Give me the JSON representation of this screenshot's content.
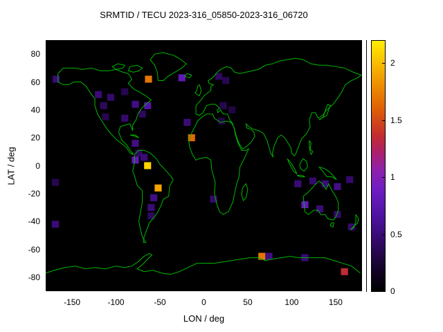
{
  "title": "SRMTID / TECU 2023-316_05850-2023-316_06720",
  "chart_data": {
    "type": "heatmap",
    "title": "SRMTID / TECU 2023-316_05850-2023-316_06720",
    "xlabel": "LON / deg",
    "ylabel": "LAT / deg",
    "xlim": [
      -180,
      180
    ],
    "ylim": [
      -90,
      90
    ],
    "xticks": [
      -150,
      -100,
      -50,
      0,
      50,
      100,
      150
    ],
    "yticks": [
      -80,
      -60,
      -40,
      -20,
      0,
      20,
      40,
      60,
      80
    ],
    "grid": false,
    "background": "#000000",
    "coastline_color": "#00b800",
    "colorbar": {
      "min": 0,
      "max": 2.2,
      "ticks": [
        0,
        0.5,
        1,
        1.5,
        2
      ],
      "position": "right"
    },
    "cell_size_deg": {
      "lon": 8,
      "lat": 5
    },
    "palette": [
      {
        "at": 0.0,
        "color": "#000000"
      },
      {
        "at": 0.09,
        "color": "#140328"
      },
      {
        "at": 0.2,
        "color": "#330968"
      },
      {
        "at": 0.3,
        "color": "#4e12a0"
      },
      {
        "at": 0.4,
        "color": "#6c1cc2"
      },
      {
        "at": 0.48,
        "color": "#8c21ae"
      },
      {
        "at": 0.55,
        "color": "#aa2070"
      },
      {
        "at": 0.62,
        "color": "#c22c30"
      },
      {
        "at": 0.72,
        "color": "#dc5c08"
      },
      {
        "at": 0.82,
        "color": "#ee8c00"
      },
      {
        "at": 0.92,
        "color": "#f9c200"
      },
      {
        "at": 1.0,
        "color": "#ffee00"
      }
    ],
    "points": [
      [
        -168,
        62,
        0.5
      ],
      [
        -63,
        62,
        1.7
      ],
      [
        -25,
        63,
        0.8
      ],
      [
        17,
        64,
        0.4
      ],
      [
        25,
        61,
        0.35
      ],
      [
        -120,
        51,
        0.5
      ],
      [
        -106,
        49,
        0.45
      ],
      [
        -90,
        53,
        0.35
      ],
      [
        -114,
        43,
        0.4
      ],
      [
        -78,
        44,
        0.55
      ],
      [
        -64,
        43,
        0.7
      ],
      [
        -112,
        35,
        0.35
      ],
      [
        -90,
        34,
        0.45
      ],
      [
        -70,
        37,
        0.4
      ],
      [
        22,
        43,
        0.35
      ],
      [
        32,
        40,
        0.3
      ],
      [
        -19,
        31,
        0.5
      ],
      [
        20,
        32,
        0.3
      ],
      [
        -14,
        20,
        1.65
      ],
      [
        -78,
        16,
        0.55
      ],
      [
        -74,
        9,
        0.4
      ],
      [
        -78,
        4,
        0.8
      ],
      [
        -68,
        6,
        0.5
      ],
      [
        -64,
        0,
        2.1
      ],
      [
        -169,
        -12,
        0.35
      ],
      [
        -52,
        -16,
        1.9
      ],
      [
        -57,
        -23,
        0.55
      ],
      [
        11,
        -24,
        0.45
      ],
      [
        -60,
        -30,
        0.5
      ],
      [
        -60,
        -36,
        0.4
      ],
      [
        107,
        -13,
        0.5
      ],
      [
        124,
        -11,
        0.45
      ],
      [
        138,
        -13,
        0.5
      ],
      [
        152,
        -15,
        0.55
      ],
      [
        166,
        -10,
        0.45
      ],
      [
        115,
        -28,
        0.8
      ],
      [
        132,
        -31,
        0.5
      ],
      [
        152,
        -35,
        0.45
      ],
      [
        -169,
        -42,
        0.5
      ],
      [
        168,
        -44,
        0.45
      ],
      [
        66,
        -65,
        1.7
      ],
      [
        74,
        -65,
        0.55
      ],
      [
        115,
        -66,
        0.5
      ],
      [
        160,
        -76,
        1.35
      ]
    ]
  }
}
